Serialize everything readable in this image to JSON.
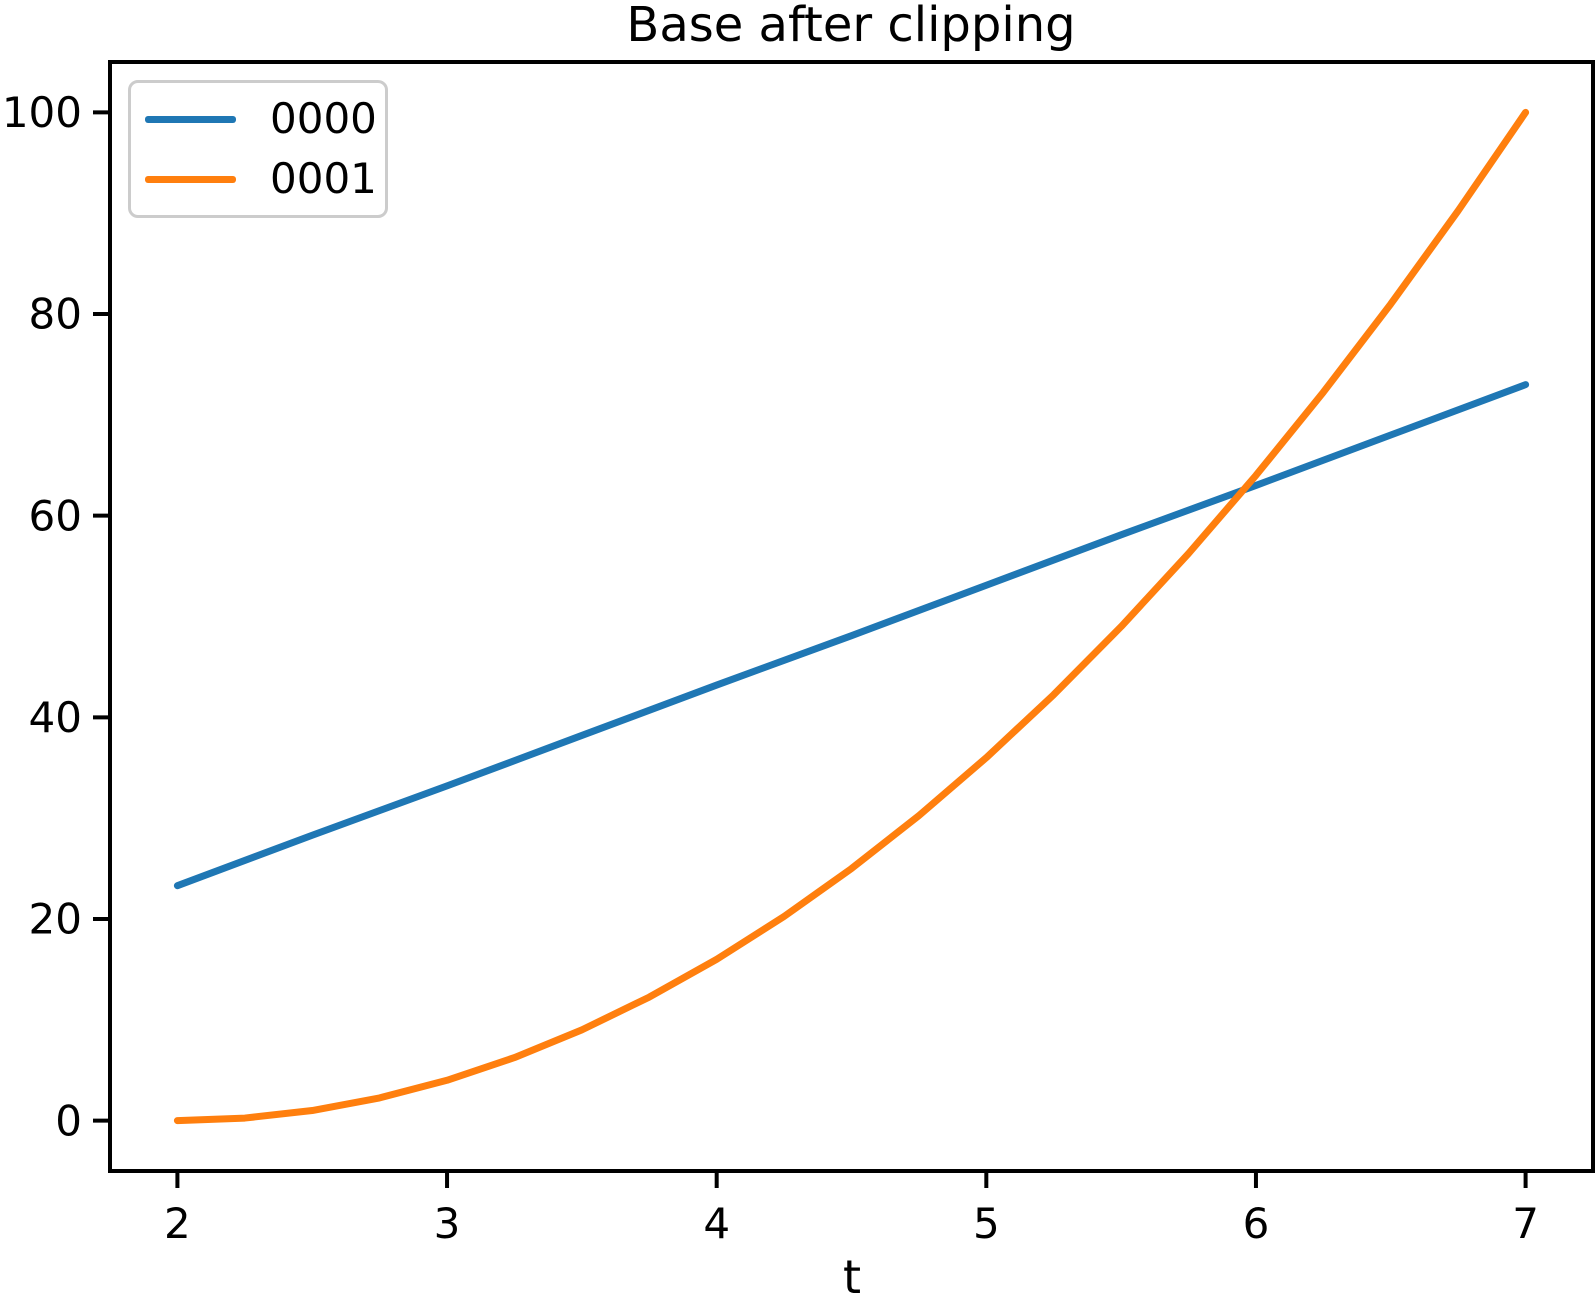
{
  "figure": {
    "title": "Base after clipping",
    "xlabel": "t",
    "background_color": "#ffffff",
    "text_color": "#000000",
    "spine_color": "#000000"
  },
  "legend": {
    "position": "upper-left",
    "border_color": "#cccccc",
    "background_color": "#ffffff",
    "entries": [
      {
        "label": "0000",
        "color": "#1f77b4",
        "swatch": "line"
      },
      {
        "label": "0001",
        "color": "#ff7f0e",
        "swatch": "line"
      }
    ]
  },
  "chart_data": {
    "type": "line",
    "title": "Base after clipping",
    "xlabel": "t",
    "ylabel": "",
    "xlim": [
      1.75,
      7.25
    ],
    "ylim": [
      -5,
      105
    ],
    "xticks": [
      2,
      3,
      4,
      5,
      6,
      7
    ],
    "yticks": [
      0,
      20,
      40,
      60,
      80,
      100
    ],
    "grid": false,
    "legend_position": "upper-left",
    "series": [
      {
        "name": "0000",
        "color": "#1f77b4",
        "line_width": 7,
        "x": [
          2,
          2.5,
          3,
          3.5,
          4,
          4.5,
          5,
          5.5,
          6,
          6.5,
          7
        ],
        "y": [
          23.3,
          28.3,
          33.2,
          38.2,
          43.2,
          48.1,
          53.1,
          58.1,
          63.0,
          68.0,
          73.0
        ]
      },
      {
        "name": "0001",
        "color": "#ff7f0e",
        "line_width": 7,
        "x": [
          2,
          2.25,
          2.5,
          2.75,
          3,
          3.25,
          3.5,
          3.75,
          4,
          4.25,
          4.5,
          4.75,
          5,
          5.25,
          5.5,
          5.75,
          6,
          6.25,
          6.5,
          6.75,
          7
        ],
        "y": [
          0,
          0.25,
          1,
          2.25,
          4,
          6.25,
          9,
          12.25,
          16,
          20.25,
          25,
          30.25,
          36,
          42.25,
          49,
          56.25,
          64,
          72.25,
          81,
          90.25,
          100
        ]
      }
    ]
  }
}
